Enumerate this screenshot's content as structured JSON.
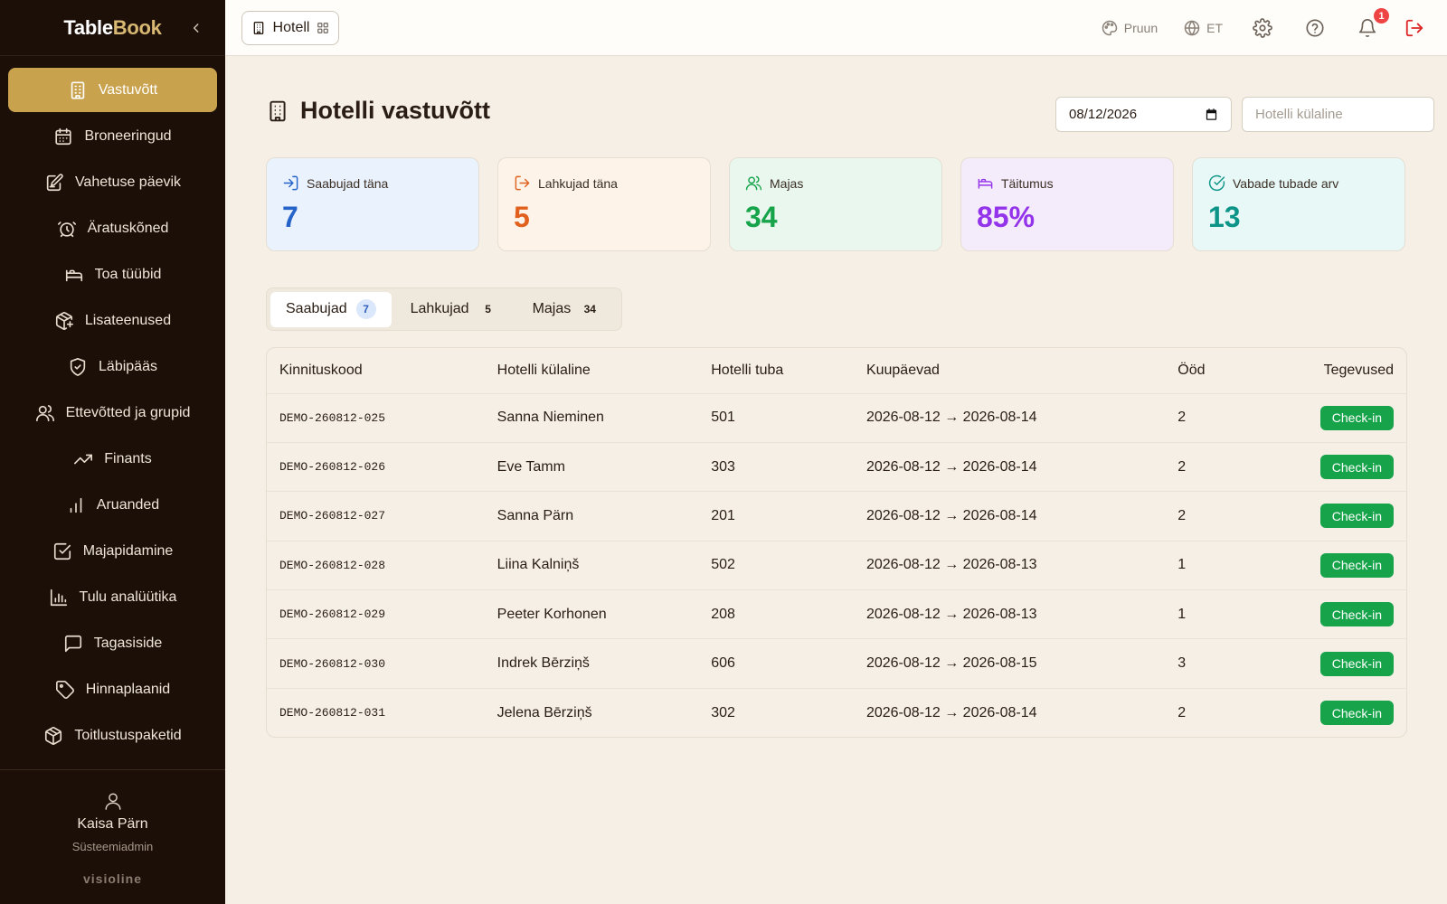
{
  "app": {
    "brand_part1": "Table",
    "brand_part2": "Book",
    "brand_color": "#d8b872"
  },
  "sidebar": {
    "items": [
      {
        "label": "Vastuvõtt",
        "icon": "building-icon",
        "active": true
      },
      {
        "label": "Broneeringud",
        "icon": "calendar-icon"
      },
      {
        "label": "Vahetuse päevik",
        "icon": "edit-note-icon"
      },
      {
        "label": "Äratuskõned",
        "icon": "alarm-clock-icon"
      },
      {
        "label": "Toa tüübid",
        "icon": "bed-icon"
      },
      {
        "label": "Lisateenused",
        "icon": "package-plus-icon"
      },
      {
        "label": "Läbipääs",
        "icon": "shield-check-icon"
      },
      {
        "label": "Ettevõtted ja grupid",
        "icon": "users-icon"
      },
      {
        "label": "Finants",
        "icon": "trending-up-icon"
      },
      {
        "label": "Aruanded",
        "icon": "bar-chart-icon"
      },
      {
        "label": "Majapidamine",
        "icon": "checkbox-icon"
      },
      {
        "label": "Tulu analüütika",
        "icon": "chart-icon"
      },
      {
        "label": "Tagasiside",
        "icon": "message-icon"
      },
      {
        "label": "Hinnaplaanid",
        "icon": "tag-icon"
      },
      {
        "label": "Toitlustuspaketid",
        "icon": "box-icon"
      }
    ],
    "user_name": "Kaisa Pärn",
    "user_role": "Süsteemiadmin",
    "footer_brand": "visioline"
  },
  "topbar": {
    "module_label": "Hotell",
    "theme_label": "Pruun",
    "language_label": "ET",
    "notification_count": "1"
  },
  "page": {
    "title": "Hotelli vastuvõtt",
    "date_value": "08/12/2026",
    "guest_placeholder": "Hotelli külaline"
  },
  "stats": [
    {
      "label": "Saabujad täna",
      "value": "7",
      "color": "#2563c9",
      "bg": "#eaf2fd",
      "icon": "log-in-icon"
    },
    {
      "label": "Lahkujad täna",
      "value": "5",
      "color": "#e2601d",
      "bg": "#fdf3e8",
      "icon": "log-out-icon"
    },
    {
      "label": "Majas",
      "value": "34",
      "color": "#16a34a",
      "bg": "#e9f7ef",
      "icon": "users-icon"
    },
    {
      "label": "Täitumus",
      "value": "85%",
      "color": "#9333ea",
      "bg": "#f5ecfb",
      "icon": "bed-icon"
    },
    {
      "label": "Vabade tubade arv",
      "value": "13",
      "color": "#0d9488",
      "bg": "#e7f8f6",
      "icon": "check-circle-icon"
    }
  ],
  "tabs": [
    {
      "label": "Saabujad",
      "count": "7",
      "active": true
    },
    {
      "label": "Lahkujad",
      "count": "5"
    },
    {
      "label": "Majas",
      "count": "34"
    }
  ],
  "table": {
    "headers": [
      "Kinnituskood",
      "Hotelli külaline",
      "Hotelli tuba",
      "Kuupäevad",
      "Ööd",
      "Tegevused"
    ],
    "action_label": "Check-in",
    "rows": [
      {
        "code": "DEMO-260812-025",
        "guest": "Sanna Nieminen",
        "room": "501",
        "dates": "2026-08-12 → 2026-08-14",
        "nights": "2"
      },
      {
        "code": "DEMO-260812-026",
        "guest": "Eve Tamm",
        "room": "303",
        "dates": "2026-08-12 → 2026-08-14",
        "nights": "2"
      },
      {
        "code": "DEMO-260812-027",
        "guest": "Sanna Pärn",
        "room": "201",
        "dates": "2026-08-12 → 2026-08-14",
        "nights": "2"
      },
      {
        "code": "DEMO-260812-028",
        "guest": "Liina Kalniņš",
        "room": "502",
        "dates": "2026-08-12 → 2026-08-13",
        "nights": "1"
      },
      {
        "code": "DEMO-260812-029",
        "guest": "Peeter Korhonen",
        "room": "208",
        "dates": "2026-08-12 → 2026-08-13",
        "nights": "1"
      },
      {
        "code": "DEMO-260812-030",
        "guest": "Indrek Bērziņš",
        "room": "606",
        "dates": "2026-08-12 → 2026-08-15",
        "nights": "3"
      },
      {
        "code": "DEMO-260812-031",
        "guest": "Jelena Bērziņš",
        "room": "302",
        "dates": "2026-08-12 → 2026-08-14",
        "nights": "2"
      }
    ]
  }
}
